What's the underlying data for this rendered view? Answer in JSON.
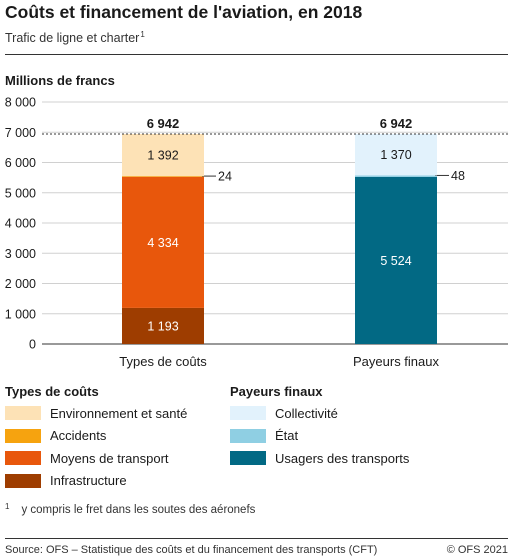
{
  "header": {
    "title": "Coûts et financement de l'aviation, en 2018",
    "subtitle": "Trafic de ligne et charter",
    "subtitle_note": "1"
  },
  "chart_data": {
    "type": "bar",
    "stacked": true,
    "ylabel": "Millions de francs",
    "ylim": [
      0,
      8000
    ],
    "yticks": [
      "0",
      "1 000",
      "2 000",
      "3 000",
      "4 000",
      "5 000",
      "6 000",
      "7 000",
      "8 000"
    ],
    "categories": [
      "Types de coûts",
      "Payeurs finaux"
    ],
    "totals": [
      {
        "value": 6942,
        "label": "6 942"
      },
      {
        "value": 6942,
        "label": "6 942"
      }
    ],
    "grid": true,
    "reference_line": 6942,
    "series": [
      {
        "name": "Infrastructure",
        "color": "#9e3d00",
        "values": [
          1193,
          null
        ],
        "labels": [
          "1 193",
          ""
        ]
      },
      {
        "name": "Moyens de transport",
        "color": "#e8570c",
        "values": [
          4334,
          null
        ],
        "labels": [
          "4 334",
          ""
        ]
      },
      {
        "name": "Accidents",
        "color": "#f6a30f",
        "values": [
          24,
          null
        ],
        "labels": [
          "24",
          ""
        ]
      },
      {
        "name": "Environnement et santé",
        "color": "#fde2b6",
        "values": [
          1392,
          null
        ],
        "labels": [
          "1 392",
          ""
        ]
      },
      {
        "name": "Usagers des transports",
        "color": "#026984",
        "values": [
          null,
          5524
        ],
        "labels": [
          "",
          "5 524"
        ]
      },
      {
        "name": "État",
        "color": "#8fcfe3",
        "values": [
          null,
          48
        ],
        "labels": [
          "",
          "48"
        ]
      },
      {
        "name": "Collectivité",
        "color": "#e2f2fc",
        "values": [
          null,
          1370
        ],
        "labels": [
          "",
          "1 370"
        ]
      }
    ]
  },
  "legend": {
    "costs_title": "Types de coûts",
    "costs": [
      {
        "label": "Environnement et santé",
        "color": "#fde2b6"
      },
      {
        "label": "Accidents",
        "color": "#f6a30f"
      },
      {
        "label": "Moyens de transport",
        "color": "#e8570c"
      },
      {
        "label": "Infrastructure",
        "color": "#9e3d00"
      }
    ],
    "payers_title": "Payeurs finaux",
    "payers": [
      {
        "label": "Collectivité",
        "color": "#e2f2fc"
      },
      {
        "label": "État",
        "color": "#8fcfe3"
      },
      {
        "label": "Usagers des transports",
        "color": "#026984"
      }
    ]
  },
  "footnote": {
    "marker": "1",
    "text": "y compris le fret dans les soutes des aéronefs"
  },
  "footer": {
    "source": "Source: OFS – Statistique des coûts et du financement des transports (CFT)",
    "copyright": "© OFS 2021"
  }
}
